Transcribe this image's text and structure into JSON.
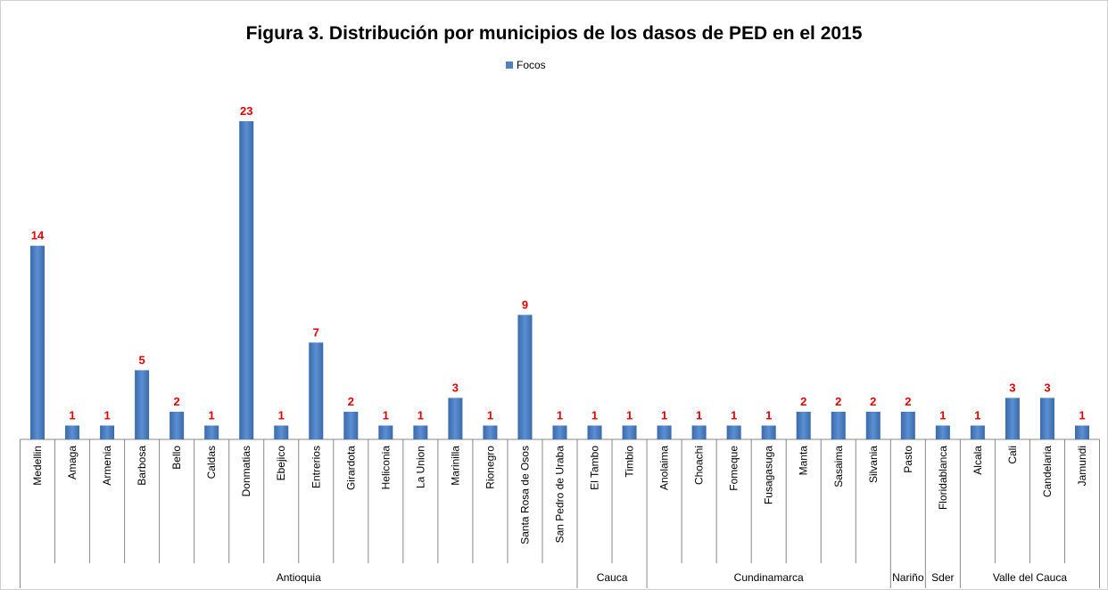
{
  "chart_data": {
    "type": "bar",
    "title": "Figura 3. Distribución por municipios de los dasos de PED en el 2015",
    "legend": "top",
    "series": [
      {
        "name": "Focos",
        "color": "#4f81bd",
        "values": [
          14,
          1,
          1,
          5,
          2,
          1,
          23,
          1,
          7,
          2,
          1,
          1,
          3,
          1,
          9,
          1,
          1,
          1,
          1,
          1,
          1,
          1,
          2,
          2,
          2,
          2,
          1,
          1,
          3,
          3,
          1
        ]
      }
    ],
    "groups": [
      {
        "name": "Antioquia",
        "categories": [
          "Medellin",
          "Amaga",
          "Armenia",
          "Barbosa",
          "Bello",
          "Caldas",
          "Donmatias",
          "Ebejico",
          "Entrerios",
          "Girardota",
          "Heliconia",
          "La Union",
          "Marinilla",
          "Rionegro",
          "Santa Rosa de Osos",
          "San Pedro de Uraba"
        ]
      },
      {
        "name": "Cauca",
        "categories": [
          "El Tambo",
          "Timbio"
        ]
      },
      {
        "name": "Cundinamarca",
        "categories": [
          "Anolaima",
          "Choachi",
          "Fomeque",
          "Fusagasuga",
          "Manta",
          "Sasaima",
          "Silvania"
        ]
      },
      {
        "name": "Nariño",
        "categories": [
          "Pasto"
        ]
      },
      {
        "name": "Sder",
        "categories": [
          "Floridablanca"
        ]
      },
      {
        "name": "Valle del Cauca",
        "categories": [
          "Alcala",
          "Cali",
          "Candelaria",
          "Jamundi"
        ]
      }
    ]
  }
}
